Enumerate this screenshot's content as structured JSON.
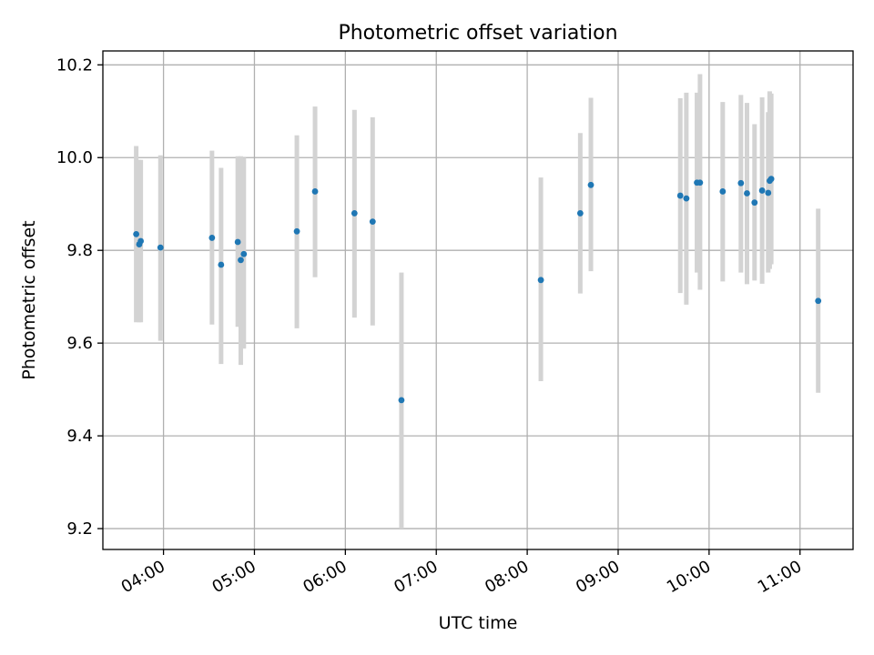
{
  "chart_data": {
    "type": "scatter",
    "title": "Photometric offset variation",
    "xlabel": "UTC time",
    "ylabel": "Photometric offset",
    "x_tick_labels": [
      "04:00",
      "05:00",
      "06:00",
      "07:00",
      "08:00",
      "09:00",
      "10:00",
      "11:00"
    ],
    "y_tick_labels": [
      "9.2",
      "9.4",
      "9.6",
      "9.8",
      "10.0",
      "10.2"
    ],
    "y_ticks": [
      9.2,
      9.4,
      9.6,
      9.8,
      10.0,
      10.2
    ],
    "x_tick_times": [
      "04:00",
      "05:00",
      "06:00",
      "07:00",
      "08:00",
      "09:00",
      "10:00",
      "11:00"
    ],
    "xlim": [
      "03:20",
      "11:35"
    ],
    "ylim": [
      9.155,
      10.23
    ],
    "grid": true,
    "colors": {
      "point": "#1f77b4",
      "errorbar": "#d3d3d3",
      "grid": "#b0b0b0"
    },
    "points": [
      {
        "x": "03:42",
        "y": 9.835,
        "ylo": 9.645,
        "yhi": 10.025
      },
      {
        "x": "03:44",
        "y": 9.813,
        "ylo": 9.645,
        "yhi": 9.995
      },
      {
        "x": "03:45",
        "y": 9.82,
        "ylo": 9.645,
        "yhi": 9.995
      },
      {
        "x": "03:58",
        "y": 9.806,
        "ylo": 9.605,
        "yhi": 10.005
      },
      {
        "x": "04:32",
        "y": 9.827,
        "ylo": 9.64,
        "yhi": 10.015
      },
      {
        "x": "04:38",
        "y": 9.769,
        "ylo": 9.555,
        "yhi": 9.978
      },
      {
        "x": "04:49",
        "y": 9.818,
        "ylo": 9.635,
        "yhi": 10.003
      },
      {
        "x": "04:51",
        "y": 9.779,
        "ylo": 9.553,
        "yhi": 10.003
      },
      {
        "x": "04:53",
        "y": 9.792,
        "ylo": 9.588,
        "yhi": 10.0
      },
      {
        "x": "05:28",
        "y": 9.841,
        "ylo": 9.632,
        "yhi": 10.048
      },
      {
        "x": "05:40",
        "y": 9.927,
        "ylo": 9.742,
        "yhi": 10.11
      },
      {
        "x": "06:06",
        "y": 9.88,
        "ylo": 9.655,
        "yhi": 10.103
      },
      {
        "x": "06:18",
        "y": 9.862,
        "ylo": 9.638,
        "yhi": 10.087
      },
      {
        "x": "06:37",
        "y": 9.477,
        "ylo": 9.2,
        "yhi": 9.752
      },
      {
        "x": "08:09",
        "y": 9.736,
        "ylo": 9.518,
        "yhi": 9.957
      },
      {
        "x": "08:35",
        "y": 9.88,
        "ylo": 9.707,
        "yhi": 10.053
      },
      {
        "x": "08:42",
        "y": 9.941,
        "ylo": 9.755,
        "yhi": 10.129
      },
      {
        "x": "09:41",
        "y": 9.918,
        "ylo": 9.708,
        "yhi": 10.128
      },
      {
        "x": "09:45",
        "y": 9.912,
        "ylo": 9.683,
        "yhi": 10.14
      },
      {
        "x": "09:52",
        "y": 9.946,
        "ylo": 9.752,
        "yhi": 10.14
      },
      {
        "x": "09:54",
        "y": 9.946,
        "ylo": 9.715,
        "yhi": 10.18
      },
      {
        "x": "10:09",
        "y": 9.927,
        "ylo": 9.733,
        "yhi": 10.12
      },
      {
        "x": "10:21",
        "y": 9.945,
        "ylo": 9.752,
        "yhi": 10.135
      },
      {
        "x": "10:25",
        "y": 9.923,
        "ylo": 9.727,
        "yhi": 10.118
      },
      {
        "x": "10:30",
        "y": 9.903,
        "ylo": 9.735,
        "yhi": 10.072
      },
      {
        "x": "10:35",
        "y": 9.929,
        "ylo": 9.728,
        "yhi": 10.13
      },
      {
        "x": "10:39",
        "y": 9.924,
        "ylo": 9.752,
        "yhi": 10.098
      },
      {
        "x": "10:40",
        "y": 9.95,
        "ylo": 9.76,
        "yhi": 10.143
      },
      {
        "x": "10:41",
        "y": 9.954,
        "ylo": 9.77,
        "yhi": 10.138
      },
      {
        "x": "11:12",
        "y": 9.691,
        "ylo": 9.493,
        "yhi": 9.89
      }
    ]
  }
}
